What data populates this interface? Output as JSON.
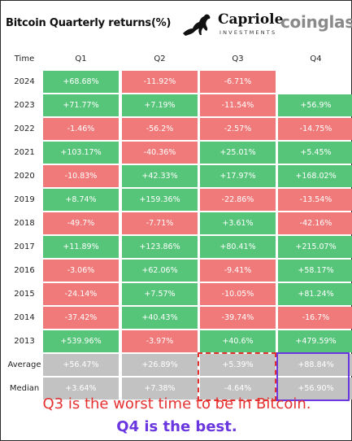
{
  "header": {
    "title": "Bitcoin Quarterly returns(%)",
    "capriole": "Capriole",
    "investments": "INVESTMENTS",
    "coinglass": "coinglass"
  },
  "chart_data": {
    "type": "table",
    "columns": [
      "Time",
      "Q1",
      "Q2",
      "Q3",
      "Q4"
    ],
    "rows": [
      {
        "label": "2024",
        "values": [
          "+68.68%",
          "-11.92%",
          "-6.71%",
          ""
        ]
      },
      {
        "label": "2023",
        "values": [
          "+71.77%",
          "+7.19%",
          "-11.54%",
          "+56.9%"
        ]
      },
      {
        "label": "2022",
        "values": [
          "-1.46%",
          "-56.2%",
          "-2.57%",
          "-14.75%"
        ]
      },
      {
        "label": "2021",
        "values": [
          "+103.17%",
          "-40.36%",
          "+25.01%",
          "+5.45%"
        ]
      },
      {
        "label": "2020",
        "values": [
          "-10.83%",
          "+42.33%",
          "+17.97%",
          "+168.02%"
        ]
      },
      {
        "label": "2019",
        "values": [
          "+8.74%",
          "+159.36%",
          "-22.86%",
          "-13.54%"
        ]
      },
      {
        "label": "2018",
        "values": [
          "-49.7%",
          "-7.71%",
          "+3.61%",
          "-42.16%"
        ]
      },
      {
        "label": "2017",
        "values": [
          "+11.89%",
          "+123.86%",
          "+80.41%",
          "+215.07%"
        ]
      },
      {
        "label": "2016",
        "values": [
          "-3.06%",
          "+62.06%",
          "-9.41%",
          "+58.17%"
        ]
      },
      {
        "label": "2015",
        "values": [
          "-24.14%",
          "+7.57%",
          "-10.05%",
          "+81.24%"
        ]
      },
      {
        "label": "2014",
        "values": [
          "-37.42%",
          "+40.43%",
          "-39.74%",
          "-16.7%"
        ]
      },
      {
        "label": "2013",
        "values": [
          "+539.96%",
          "-3.97%",
          "+40.6%",
          "+479.59%"
        ]
      }
    ],
    "summary": [
      {
        "label": "Average",
        "values": [
          "+56.47%",
          "+26.89%",
          "+5.39%",
          "+88.84%"
        ]
      },
      {
        "label": "Median",
        "values": [
          "+3.64%",
          "+7.38%",
          "-4.64%",
          "+56.90%"
        ]
      }
    ],
    "colors": {
      "positive": "#56c57a",
      "negative": "#f07a7a",
      "summary": "#c2c2c2",
      "q3_highlight": "#e53030",
      "q4_highlight": "#6a36e0"
    }
  },
  "notes": {
    "line1": "Q3 is the worst time to be in Bitcoin.",
    "line2": "Q4 is the best."
  }
}
